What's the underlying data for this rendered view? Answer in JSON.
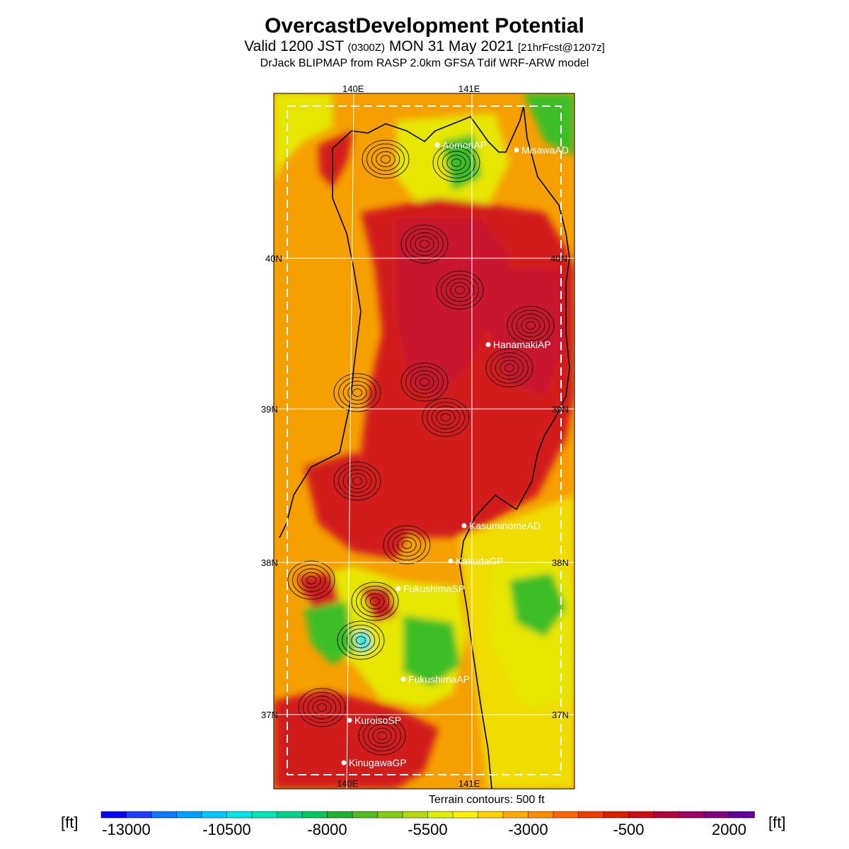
{
  "header": {
    "title": "OvercastDevelopment Potential",
    "valid_prefix": "Valid 1200 JST",
    "utc": "(0300Z)",
    "date": "MON 31 May 2021",
    "forecast": "[21hrFcst@1207z]",
    "model": "DrJack BLIPMAP from RASP 2.0km GFSA Tdif WRF-ARW model"
  },
  "axes": {
    "lon_labels": [
      "140E",
      "141E"
    ],
    "lat_labels": [
      "40N",
      "39N",
      "38N",
      "37N"
    ]
  },
  "stations": [
    "AomoriAP",
    "MisawaAD",
    "HanamakiAP",
    "KasuminomeAD",
    "KakudaGP",
    "FukushimaSP",
    "FukushimaAP",
    "KuroisoSP",
    "KinugawaGP"
  ],
  "terrain_note": "Terrain contours: 500 ft",
  "legend": {
    "unit": "[ft]",
    "tick_labels": [
      "-13000",
      "-10500",
      "-8000",
      "-5500",
      "-3000",
      "-500",
      "2000"
    ],
    "colors": [
      "#0a00f5",
      "#1e3cff",
      "#0a78ff",
      "#00a0ff",
      "#00c8ff",
      "#00e6e6",
      "#00e6b4",
      "#00d28c",
      "#00c85a",
      "#1eb42d",
      "#50be1e",
      "#82cd14",
      "#b4dc0a",
      "#dcf000",
      "#fff000",
      "#ffd200",
      "#ffaa00",
      "#ff8c00",
      "#ff6400",
      "#f03c00",
      "#dc1e00",
      "#cd0a14",
      "#b4003c",
      "#a00064",
      "#820082",
      "#640096"
    ]
  },
  "map_colors": {
    "orange": "#f5a000",
    "red": "#d21e1e",
    "dark_red": "#c8142d",
    "yellow": "#e6e600",
    "green": "#3cbe28",
    "cyan": "#00e6e6",
    "sea_yellow": "#f0dc00"
  }
}
